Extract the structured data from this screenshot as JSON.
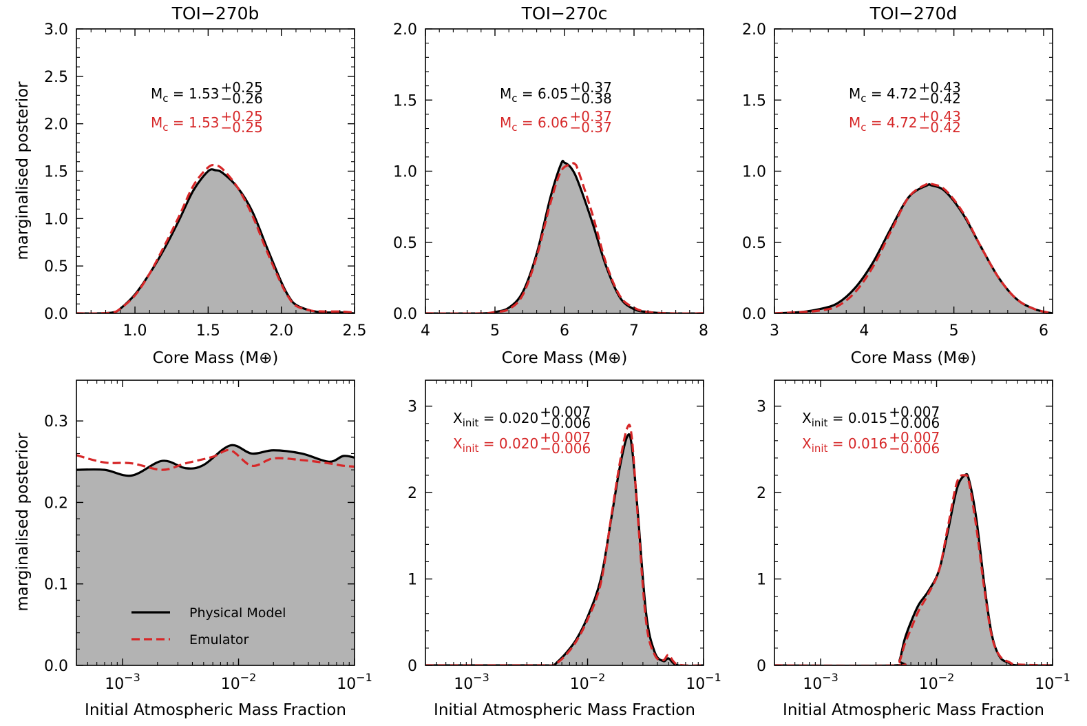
{
  "figure": {
    "ylabel": "marginalised posterior",
    "legend": {
      "physical": "Physical Model",
      "emulator": "Emulator",
      "placement": "lower-left of first bottom panel"
    },
    "colors": {
      "physical": "#000000",
      "emulator": "#d62728",
      "fill": "#b3b3b3"
    }
  },
  "chart_data": [
    {
      "type": "area",
      "title": "TOI−270b",
      "xlabel": "Core Mass (M⊕)",
      "xlim": [
        0.6,
        2.5
      ],
      "ylim": [
        0,
        3.0
      ],
      "xticks": [
        1.0,
        1.5,
        2.0,
        2.5
      ],
      "xtick_labels": [
        "1.0",
        "1.5",
        "2.0",
        "2.5"
      ],
      "yticks": [
        0,
        0.5,
        1.0,
        1.5,
        2.0,
        2.5,
        3.0
      ],
      "ytick_labels": [
        "0.0",
        "0.5",
        "1.0",
        "1.5",
        "2.0",
        "2.5",
        "3.0"
      ],
      "annotations": [
        {
          "label": "M",
          "sub": "c",
          "value": "1.53",
          "plus": "+0.25",
          "minus": "−0.26",
          "series": "Physical Model"
        },
        {
          "label": "M",
          "sub": "c",
          "value": "1.53",
          "plus": "+0.25",
          "minus": "−0.25",
          "series": "Emulator"
        }
      ],
      "series": [
        {
          "name": "Physical Model",
          "x": [
            0.6,
            0.75,
            0.85,
            0.9,
            1.0,
            1.1,
            1.2,
            1.3,
            1.4,
            1.5,
            1.55,
            1.6,
            1.7,
            1.8,
            1.9,
            2.0,
            2.05,
            2.1,
            2.2,
            2.3,
            2.4,
            2.5
          ],
          "y": [
            0,
            0,
            0.01,
            0.05,
            0.2,
            0.42,
            0.68,
            0.98,
            1.3,
            1.5,
            1.51,
            1.48,
            1.33,
            1.08,
            0.7,
            0.33,
            0.18,
            0.09,
            0.03,
            0.01,
            0.01,
            0
          ]
        },
        {
          "name": "Emulator",
          "x": [
            0.6,
            0.75,
            0.85,
            0.9,
            1.0,
            1.1,
            1.2,
            1.3,
            1.4,
            1.5,
            1.55,
            1.6,
            1.7,
            1.8,
            1.9,
            2.0,
            2.05,
            2.1,
            2.2,
            2.3,
            2.4,
            2.5
          ],
          "y": [
            0,
            0,
            0.01,
            0.05,
            0.19,
            0.42,
            0.71,
            1.02,
            1.35,
            1.54,
            1.56,
            1.52,
            1.33,
            1.04,
            0.66,
            0.31,
            0.17,
            0.08,
            0.03,
            0.02,
            0.02,
            0.01
          ]
        }
      ]
    },
    {
      "type": "area",
      "title": "TOI−270c",
      "xlabel": "Core Mass (M⊕)",
      "xlim": [
        4,
        8
      ],
      "ylim": [
        0,
        2.0
      ],
      "xticks": [
        4,
        5,
        6,
        7,
        8
      ],
      "xtick_labels": [
        "4",
        "5",
        "6",
        "7",
        "8"
      ],
      "yticks": [
        0,
        0.5,
        1.0,
        1.5,
        2.0
      ],
      "ytick_labels": [
        "0.0",
        "0.5",
        "1.0",
        "1.5",
        "2.0"
      ],
      "annotations": [
        {
          "label": "M",
          "sub": "c",
          "value": "6.05",
          "plus": "+0.37",
          "minus": "−0.38",
          "series": "Physical Model"
        },
        {
          "label": "M",
          "sub": "c",
          "value": "6.06",
          "plus": "+0.37",
          "minus": "−0.37",
          "series": "Emulator"
        }
      ],
      "series": [
        {
          "name": "Physical Model",
          "x": [
            4,
            4.8,
            5.0,
            5.2,
            5.4,
            5.6,
            5.8,
            5.95,
            6.0,
            6.1,
            6.2,
            6.4,
            6.6,
            6.8,
            7.0,
            7.2,
            7.5,
            8
          ],
          "y": [
            0,
            0,
            0.01,
            0.04,
            0.15,
            0.42,
            0.82,
            1.05,
            1.06,
            1.02,
            0.92,
            0.64,
            0.33,
            0.11,
            0.03,
            0.01,
            0,
            0
          ]
        },
        {
          "name": "Emulator",
          "x": [
            4,
            4.8,
            5.0,
            5.2,
            5.4,
            5.6,
            5.8,
            5.95,
            6.1,
            6.15,
            6.2,
            6.4,
            6.6,
            6.8,
            7.0,
            7.2,
            7.5,
            8
          ],
          "y": [
            0,
            0,
            0.01,
            0.03,
            0.13,
            0.4,
            0.78,
            1.0,
            1.05,
            1.05,
            1.0,
            0.7,
            0.35,
            0.12,
            0.04,
            0.01,
            0,
            0
          ]
        }
      ]
    },
    {
      "type": "area",
      "title": "TOI−270d",
      "xlabel": "Core Mass (M⊕)",
      "xlim": [
        3,
        6.1
      ],
      "ylim": [
        0,
        2.0
      ],
      "xticks": [
        3,
        4,
        5,
        6
      ],
      "xtick_labels": [
        "3",
        "4",
        "5",
        "6"
      ],
      "yticks": [
        0,
        0.5,
        1.0,
        1.5,
        2.0
      ],
      "ytick_labels": [
        "0.0",
        "0.5",
        "1.0",
        "1.5",
        "2.0"
      ],
      "annotations": [
        {
          "label": "M",
          "sub": "c",
          "value": "4.72",
          "plus": "+0.43",
          "minus": "−0.42",
          "series": "Physical Model"
        },
        {
          "label": "M",
          "sub": "c",
          "value": "4.72",
          "plus": "+0.43",
          "minus": "−0.42",
          "series": "Emulator"
        }
      ],
      "series": [
        {
          "name": "Physical Model",
          "x": [
            3.0,
            3.3,
            3.5,
            3.7,
            3.9,
            4.1,
            4.3,
            4.5,
            4.7,
            4.75,
            4.9,
            5.1,
            5.3,
            5.5,
            5.7,
            5.9,
            6.1
          ],
          "y": [
            0,
            0.01,
            0.03,
            0.07,
            0.18,
            0.36,
            0.6,
            0.82,
            0.9,
            0.9,
            0.86,
            0.7,
            0.47,
            0.25,
            0.1,
            0.03,
            0
          ]
        },
        {
          "name": "Emulator",
          "x": [
            3.0,
            3.3,
            3.5,
            3.7,
            3.9,
            4.1,
            4.3,
            4.5,
            4.7,
            4.75,
            4.9,
            5.1,
            5.3,
            5.5,
            5.7,
            5.9,
            6.1
          ],
          "y": [
            0,
            0.01,
            0.02,
            0.05,
            0.15,
            0.33,
            0.58,
            0.82,
            0.91,
            0.91,
            0.87,
            0.71,
            0.47,
            0.25,
            0.1,
            0.03,
            0
          ]
        }
      ]
    },
    {
      "type": "area",
      "xlabel": "Initial Atmospheric Mass Fraction",
      "xscale": "log",
      "xlim": [
        0.0004,
        0.1
      ],
      "ylim": [
        0,
        0.35
      ],
      "xticks": [
        0.001,
        0.01,
        0.1
      ],
      "xtick_labels": [
        {
          "base": "10",
          "exp": "−3"
        },
        {
          "base": "10",
          "exp": "−2"
        },
        {
          "base": "10",
          "exp": "−1"
        }
      ],
      "yticks": [
        0,
        0.1,
        0.2,
        0.3
      ],
      "ytick_labels": [
        "0.0",
        "0.1",
        "0.2",
        "0.3"
      ],
      "annotations": [],
      "legend": true,
      "series": [
        {
          "name": "Physical Model",
          "x": [
            0.0004,
            0.0007,
            0.0012,
            0.0022,
            0.0035,
            0.005,
            0.0085,
            0.013,
            0.02,
            0.035,
            0.06,
            0.08,
            0.1
          ],
          "y": [
            0.24,
            0.24,
            0.233,
            0.251,
            0.242,
            0.246,
            0.27,
            0.26,
            0.264,
            0.26,
            0.25,
            0.257,
            0.255
          ]
        },
        {
          "name": "Emulator",
          "x": [
            0.0004,
            0.0007,
            0.0012,
            0.0022,
            0.0035,
            0.006,
            0.0085,
            0.013,
            0.02,
            0.035,
            0.06,
            0.08,
            0.1
          ],
          "y": [
            0.258,
            0.249,
            0.248,
            0.24,
            0.248,
            0.256,
            0.264,
            0.245,
            0.254,
            0.252,
            0.248,
            0.245,
            0.244
          ]
        }
      ]
    },
    {
      "type": "area",
      "xlabel": "Initial Atmospheric Mass Fraction",
      "xscale": "log",
      "xlim": [
        0.0004,
        0.1
      ],
      "ylim": [
        0,
        3.3
      ],
      "xticks": [
        0.001,
        0.01,
        0.1
      ],
      "xtick_labels": [
        {
          "base": "10",
          "exp": "−3"
        },
        {
          "base": "10",
          "exp": "−2"
        },
        {
          "base": "10",
          "exp": "−1"
        }
      ],
      "yticks": [
        0,
        1,
        2,
        3
      ],
      "ytick_labels": [
        "0",
        "1",
        "2",
        "3"
      ],
      "annotations": [
        {
          "label": "X",
          "sub": "init",
          "value": "0.020",
          "plus": "+0.007",
          "minus": "−0.006",
          "series": "Physical Model"
        },
        {
          "label": "X",
          "sub": "init",
          "value": "0.020",
          "plus": "+0.007",
          "minus": "−0.006",
          "series": "Emulator"
        }
      ],
      "series": [
        {
          "name": "Physical Model",
          "x": [
            0.0004,
            0.004,
            0.005,
            0.0055,
            0.0065,
            0.008,
            0.01,
            0.013,
            0.016,
            0.019,
            0.022,
            0.024,
            0.027,
            0.032,
            0.038,
            0.045,
            0.05,
            0.06,
            0.1
          ],
          "y": [
            0,
            0,
            0,
            0.04,
            0.14,
            0.3,
            0.56,
            1.0,
            1.7,
            2.3,
            2.65,
            2.55,
            1.8,
            0.6,
            0.15,
            0.05,
            0.08,
            0,
            0
          ]
        },
        {
          "name": "Emulator",
          "x": [
            0.0004,
            0.004,
            0.005,
            0.0055,
            0.0065,
            0.008,
            0.01,
            0.013,
            0.016,
            0.019,
            0.022,
            0.024,
            0.027,
            0.032,
            0.038,
            0.045,
            0.05,
            0.06,
            0.1
          ],
          "y": [
            0,
            0,
            0,
            0.03,
            0.12,
            0.28,
            0.53,
            0.95,
            1.72,
            2.35,
            2.75,
            2.65,
            1.75,
            0.5,
            0.12,
            0.06,
            0.12,
            0.01,
            0
          ]
        }
      ]
    },
    {
      "type": "area",
      "xlabel": "Initial Atmospheric Mass Fraction",
      "xscale": "log",
      "xlim": [
        0.0004,
        0.1
      ],
      "ylim": [
        0,
        3.3
      ],
      "xticks": [
        0.001,
        0.01,
        0.1
      ],
      "xtick_labels": [
        {
          "base": "10",
          "exp": "−3"
        },
        {
          "base": "10",
          "exp": "−2"
        },
        {
          "base": "10",
          "exp": "−1"
        }
      ],
      "yticks": [
        0,
        1,
        2,
        3
      ],
      "ytick_labels": [
        "0",
        "1",
        "2",
        "3"
      ],
      "annotations": [
        {
          "label": "X",
          "sub": "init",
          "value": "0.015",
          "plus": "+0.007",
          "minus": "−0.006",
          "series": "Physical Model"
        },
        {
          "label": "X",
          "sub": "init",
          "value": "0.016",
          "plus": "+0.007",
          "minus": "−0.006",
          "series": "Emulator"
        }
      ],
      "series": [
        {
          "name": "Physical Model",
          "x": [
            0.0004,
            0.0044,
            0.0048,
            0.0053,
            0.006,
            0.007,
            0.0085,
            0.0105,
            0.0125,
            0.015,
            0.0175,
            0.019,
            0.022,
            0.026,
            0.03,
            0.035,
            0.042,
            0.05,
            0.1
          ],
          "y": [
            0,
            0,
            0.06,
            0.3,
            0.5,
            0.7,
            0.86,
            1.1,
            1.55,
            2.05,
            2.2,
            2.15,
            1.7,
            0.9,
            0.35,
            0.1,
            0.03,
            0,
            0
          ]
        },
        {
          "name": "Emulator",
          "x": [
            0.0004,
            0.0044,
            0.0048,
            0.0053,
            0.006,
            0.007,
            0.0085,
            0.0105,
            0.0125,
            0.015,
            0.0175,
            0.019,
            0.022,
            0.026,
            0.03,
            0.035,
            0.042,
            0.05,
            0.1
          ],
          "y": [
            0,
            0,
            0.05,
            0.24,
            0.42,
            0.63,
            0.83,
            1.1,
            1.6,
            2.12,
            2.2,
            2.12,
            1.6,
            0.85,
            0.33,
            0.11,
            0.04,
            0.01,
            0
          ]
        }
      ]
    }
  ]
}
